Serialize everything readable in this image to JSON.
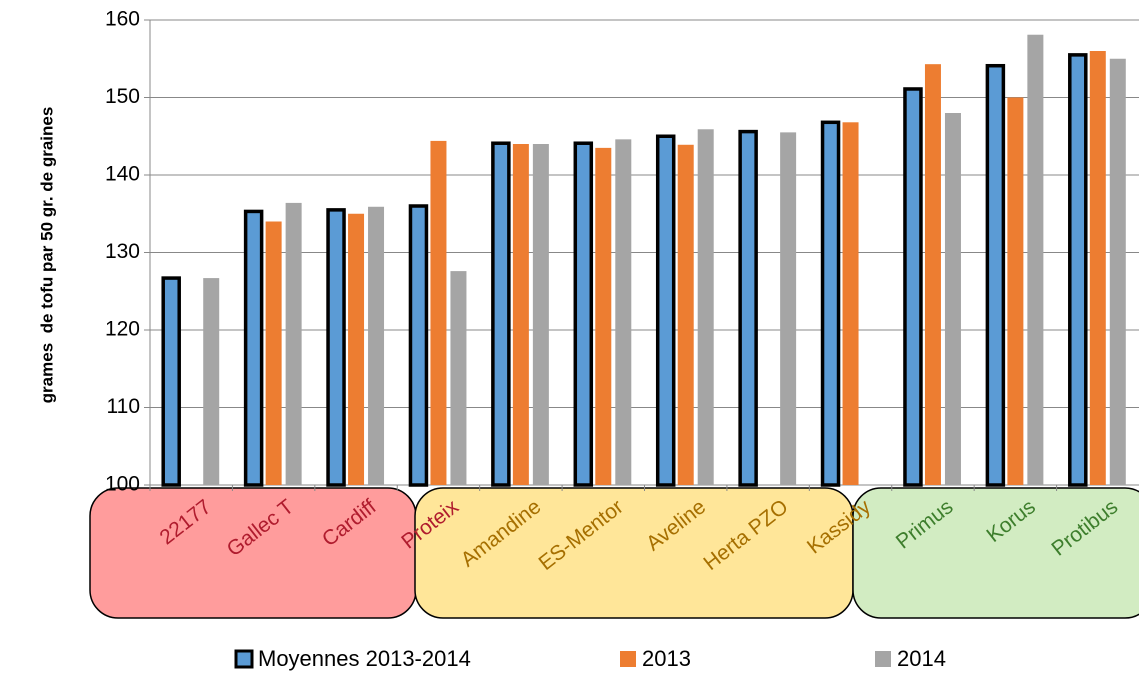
{
  "chart_data": {
    "type": "bar",
    "y_axis_label": "grames  de tofu par 50 gr. de graines",
    "categories": [
      "22177",
      "Gallec T",
      "Cardiff",
      "Proteix",
      "Amandine",
      "ES-Mentor",
      "Aveline",
      "Herta PZO",
      "Kassidy",
      "Primus",
      "Korus",
      "Protibus"
    ],
    "category_colors": [
      "#b01c2e",
      "#b01c2e",
      "#b01c2e",
      "#b01c2e",
      "#a66f00",
      "#a66f00",
      "#a66f00",
      "#a66f00",
      "#a66f00",
      "#3d7e2c",
      "#3d7e2c",
      "#3d7e2c"
    ],
    "series": [
      {
        "name": "Moyennes 2013-2014",
        "color": "#5b9bd5",
        "values": [
          126.7,
          135.3,
          135.5,
          136,
          144.1,
          144.1,
          145,
          145.6,
          146.8,
          151.1,
          154.1,
          155.5
        ]
      },
      {
        "name": "2013",
        "color": "#ed7d31",
        "values": [
          null,
          134,
          135,
          144.4,
          144,
          143.5,
          143.9,
          null,
          146.8,
          154.3,
          150,
          156
        ]
      },
      {
        "name": "2014",
        "color": "#a5a5a5",
        "values": [
          126.7,
          136.4,
          135.9,
          127.6,
          144,
          144.6,
          145.9,
          145.5,
          null,
          148,
          158.1,
          155
        ]
      }
    ],
    "ylim": [
      100,
      160
    ],
    "yticks": [
      100,
      110,
      120,
      130,
      140,
      150,
      160
    ],
    "grid": true,
    "legend": "bottom"
  }
}
